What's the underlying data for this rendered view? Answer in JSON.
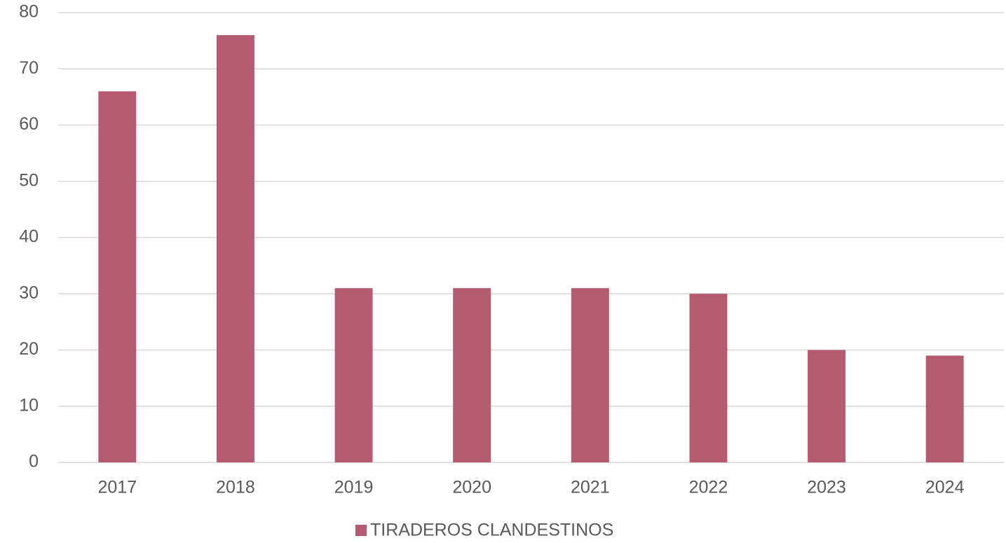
{
  "chart_data": {
    "type": "bar",
    "categories": [
      "2017",
      "2018",
      "2019",
      "2020",
      "2021",
      "2022",
      "2023",
      "2024"
    ],
    "series": [
      {
        "name": "TIRADEROS CLANDESTINOS",
        "color": "#b55b6f",
        "values": [
          66,
          76,
          31,
          31,
          31,
          30,
          20,
          19
        ]
      }
    ],
    "ylim": [
      0,
      80
    ],
    "yticks": [
      0,
      10,
      20,
      30,
      40,
      50,
      60,
      70,
      80
    ],
    "grid": true,
    "legend": "bottom"
  }
}
